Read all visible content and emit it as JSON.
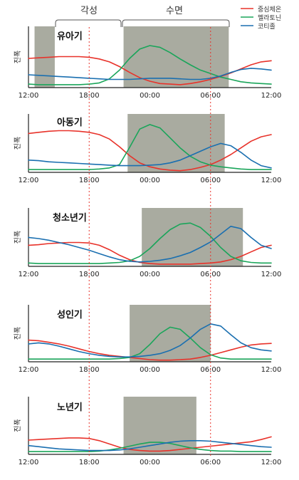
{
  "header": {
    "wake_label": "각성",
    "sleep_label": "수면"
  },
  "legend": [
    {
      "name": "중심체온",
      "color": "#e8322a"
    },
    {
      "name": "멜라토닌",
      "color": "#1aa55a"
    },
    {
      "name": "코티졸",
      "color": "#1a6fb0"
    }
  ],
  "colors": {
    "shade": "#a9aba0",
    "marker": "#e8322a"
  },
  "chart_data": [
    {
      "type": "line",
      "title": "유아기",
      "ylabel": "진폭",
      "x_ticks": [
        "12:00",
        "18:00",
        "00:00",
        "06:00",
        "12:00"
      ],
      "xlim_hours": [
        12,
        36
      ],
      "ylim": [
        0,
        1
      ],
      "grid": false,
      "shaded_periods": [
        [
          12.6,
          14.6
        ],
        [
          21.4,
          31.8
        ]
      ],
      "marker_lines": [
        18,
        30
      ],
      "x": [
        12,
        13,
        14,
        15,
        16,
        17,
        18,
        19,
        20,
        21,
        22,
        23,
        24,
        25,
        26,
        27,
        28,
        29,
        30,
        31,
        32,
        33,
        34,
        35,
        36
      ],
      "series": [
        {
          "name": "중심체온",
          "values": [
            0.5,
            0.51,
            0.52,
            0.53,
            0.53,
            0.53,
            0.52,
            0.49,
            0.44,
            0.36,
            0.26,
            0.17,
            0.11,
            0.07,
            0.06,
            0.05,
            0.07,
            0.1,
            0.14,
            0.19,
            0.25,
            0.32,
            0.39,
            0.44,
            0.46
          ]
        },
        {
          "name": "멜라토닌",
          "values": [
            0.06,
            0.05,
            0.05,
            0.05,
            0.05,
            0.05,
            0.06,
            0.08,
            0.15,
            0.3,
            0.5,
            0.66,
            0.72,
            0.69,
            0.6,
            0.49,
            0.39,
            0.3,
            0.24,
            0.18,
            0.14,
            0.1,
            0.08,
            0.07,
            0.06
          ]
        },
        {
          "name": "코티졸",
          "values": [
            0.22,
            0.21,
            0.2,
            0.19,
            0.18,
            0.17,
            0.16,
            0.15,
            0.14,
            0.14,
            0.14,
            0.15,
            0.16,
            0.16,
            0.16,
            0.15,
            0.14,
            0.14,
            0.16,
            0.2,
            0.26,
            0.31,
            0.33,
            0.32,
            0.3
          ]
        }
      ]
    },
    {
      "type": "line",
      "title": "아동기",
      "ylabel": "진폭",
      "x_ticks": [
        "12:00",
        "18:00",
        "00:00",
        "06:00",
        "12:00"
      ],
      "xlim_hours": [
        12,
        36
      ],
      "ylim": [
        0,
        1
      ],
      "grid": false,
      "shaded_periods": [
        [
          21.8,
          31.4
        ]
      ],
      "marker_lines": [
        18,
        30
      ],
      "x": [
        12,
        13,
        14,
        15,
        16,
        17,
        18,
        19,
        20,
        21,
        22,
        23,
        24,
        25,
        26,
        27,
        28,
        29,
        30,
        31,
        32,
        33,
        34,
        35,
        36
      ],
      "series": [
        {
          "name": "중심체온",
          "values": [
            0.7,
            0.72,
            0.74,
            0.75,
            0.75,
            0.74,
            0.72,
            0.68,
            0.6,
            0.46,
            0.3,
            0.17,
            0.1,
            0.06,
            0.04,
            0.03,
            0.05,
            0.09,
            0.14,
            0.22,
            0.32,
            0.44,
            0.56,
            0.64,
            0.68
          ]
        },
        {
          "name": "멜라토닌",
          "values": [
            0.05,
            0.05,
            0.05,
            0.05,
            0.05,
            0.05,
            0.05,
            0.06,
            0.08,
            0.14,
            0.45,
            0.78,
            0.86,
            0.8,
            0.62,
            0.44,
            0.29,
            0.19,
            0.13,
            0.1,
            0.08,
            0.06,
            0.05,
            0.05,
            0.05
          ]
        },
        {
          "name": "코티졸",
          "values": [
            0.22,
            0.21,
            0.19,
            0.18,
            0.17,
            0.16,
            0.15,
            0.14,
            0.13,
            0.12,
            0.12,
            0.12,
            0.13,
            0.14,
            0.17,
            0.22,
            0.3,
            0.38,
            0.46,
            0.52,
            0.48,
            0.36,
            0.22,
            0.12,
            0.08
          ]
        }
      ]
    },
    {
      "type": "line",
      "title": "청소년기",
      "ylabel": "진폭",
      "x_ticks": [
        "12:00",
        "18:00",
        "00:00",
        "06:00",
        "12:00"
      ],
      "xlim_hours": [
        12,
        36
      ],
      "ylim": [
        0,
        1
      ],
      "grid": false,
      "shaded_periods": [
        [
          23.2,
          33.2
        ]
      ],
      "marker_lines": [
        18,
        30
      ],
      "x": [
        12,
        13,
        14,
        15,
        16,
        17,
        18,
        19,
        20,
        21,
        22,
        23,
        24,
        25,
        26,
        27,
        28,
        29,
        30,
        31,
        32,
        33,
        34,
        35,
        36
      ],
      "series": [
        {
          "name": "중심체온",
          "values": [
            0.38,
            0.39,
            0.41,
            0.42,
            0.43,
            0.43,
            0.42,
            0.38,
            0.3,
            0.2,
            0.12,
            0.07,
            0.05,
            0.04,
            0.04,
            0.04,
            0.04,
            0.05,
            0.06,
            0.08,
            0.12,
            0.18,
            0.26,
            0.34,
            0.38
          ]
        },
        {
          "name": "멜라토닌",
          "values": [
            0.06,
            0.05,
            0.05,
            0.05,
            0.05,
            0.05,
            0.05,
            0.05,
            0.06,
            0.07,
            0.1,
            0.18,
            0.32,
            0.5,
            0.66,
            0.76,
            0.78,
            0.7,
            0.54,
            0.34,
            0.18,
            0.1,
            0.07,
            0.06,
            0.06
          ]
        },
        {
          "name": "코티졸",
          "values": [
            0.52,
            0.5,
            0.47,
            0.43,
            0.39,
            0.34,
            0.29,
            0.23,
            0.17,
            0.12,
            0.09,
            0.08,
            0.09,
            0.11,
            0.14,
            0.19,
            0.25,
            0.34,
            0.44,
            0.58,
            0.72,
            0.68,
            0.52,
            0.38,
            0.32
          ]
        }
      ]
    },
    {
      "type": "line",
      "title": "성인기",
      "ylabel": "진폭",
      "x_ticks": [
        "12:00",
        "18:00",
        "00:00",
        "06:00",
        "12:00"
      ],
      "xlim_hours": [
        12,
        36
      ],
      "ylim": [
        0,
        1
      ],
      "grid": false,
      "shaded_periods": [
        [
          22.0,
          30.0
        ]
      ],
      "marker_lines": [
        18,
        30
      ],
      "x": [
        12,
        13,
        14,
        15,
        16,
        17,
        18,
        19,
        20,
        21,
        22,
        23,
        24,
        25,
        26,
        27,
        28,
        29,
        30,
        31,
        32,
        33,
        34,
        35,
        36
      ],
      "series": [
        {
          "name": "중심체온",
          "values": [
            0.4,
            0.39,
            0.36,
            0.33,
            0.29,
            0.24,
            0.19,
            0.15,
            0.12,
            0.1,
            0.08,
            0.06,
            0.04,
            0.03,
            0.03,
            0.04,
            0.05,
            0.08,
            0.12,
            0.17,
            0.22,
            0.27,
            0.31,
            0.33,
            0.34
          ]
        },
        {
          "name": "멜라토닌",
          "values": [
            0.05,
            0.05,
            0.05,
            0.05,
            0.05,
            0.05,
            0.05,
            0.05,
            0.05,
            0.06,
            0.08,
            0.15,
            0.32,
            0.52,
            0.64,
            0.6,
            0.44,
            0.26,
            0.13,
            0.07,
            0.05,
            0.05,
            0.05,
            0.05,
            0.05
          ]
        },
        {
          "name": "코티졸",
          "values": [
            0.33,
            0.35,
            0.33,
            0.29,
            0.24,
            0.19,
            0.15,
            0.12,
            0.1,
            0.09,
            0.09,
            0.1,
            0.12,
            0.15,
            0.21,
            0.3,
            0.44,
            0.6,
            0.7,
            0.66,
            0.5,
            0.35,
            0.26,
            0.22,
            0.2
          ]
        }
      ]
    },
    {
      "type": "line",
      "title": "노년기",
      "ylabel": "진폭",
      "x_ticks": [
        "12:00",
        "18:00",
        "00:00",
        "06:00",
        "12:00"
      ],
      "xlim_hours": [
        12,
        36
      ],
      "ylim": [
        0,
        1
      ],
      "grid": false,
      "shaded_periods": [
        [
          21.4,
          28.6
        ]
      ],
      "marker_lines": [
        18,
        30
      ],
      "x": [
        12,
        13,
        14,
        15,
        16,
        17,
        18,
        19,
        20,
        21,
        22,
        23,
        24,
        25,
        26,
        27,
        28,
        29,
        30,
        31,
        32,
        33,
        34,
        35,
        36
      ],
      "series": [
        {
          "name": "중심체온",
          "values": [
            0.26,
            0.27,
            0.28,
            0.29,
            0.3,
            0.3,
            0.29,
            0.25,
            0.19,
            0.13,
            0.09,
            0.07,
            0.06,
            0.06,
            0.07,
            0.09,
            0.11,
            0.13,
            0.15,
            0.17,
            0.19,
            0.21,
            0.23,
            0.27,
            0.32
          ]
        },
        {
          "name": "멜라토닌",
          "values": [
            0.05,
            0.05,
            0.05,
            0.05,
            0.05,
            0.05,
            0.05,
            0.06,
            0.08,
            0.11,
            0.15,
            0.19,
            0.22,
            0.22,
            0.2,
            0.16,
            0.12,
            0.09,
            0.07,
            0.06,
            0.06,
            0.05,
            0.05,
            0.05,
            0.05
          ]
        },
        {
          "name": "코티졸",
          "values": [
            0.16,
            0.14,
            0.12,
            0.1,
            0.09,
            0.08,
            0.07,
            0.07,
            0.07,
            0.08,
            0.1,
            0.13,
            0.16,
            0.19,
            0.22,
            0.24,
            0.25,
            0.25,
            0.24,
            0.22,
            0.2,
            0.18,
            0.16,
            0.14,
            0.13
          ]
        }
      ]
    }
  ]
}
